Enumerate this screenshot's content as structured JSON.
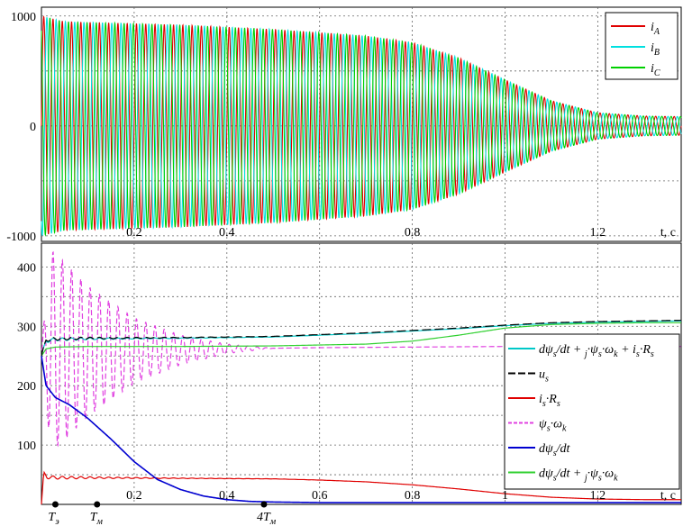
{
  "chart_data": [
    {
      "type": "line",
      "xlabel": "t, c",
      "xlim": [
        0,
        1.38
      ],
      "ylim": [
        -1050,
        1080
      ],
      "xticks": [
        0.2,
        0.4,
        0.8,
        1.2
      ],
      "xtick_labels": [
        "0.2",
        "0.4",
        "0.8",
        "1.2"
      ],
      "yticks": [
        1000,
        0,
        -1000
      ],
      "ytick_labels": [
        "1000",
        "0",
        "-1000"
      ],
      "grid": true,
      "legend_position": "top-right",
      "envelope": {
        "t": [
          0,
          0.05,
          0.3,
          0.5,
          0.7,
          0.8,
          0.9,
          1.0,
          1.1,
          1.2,
          1.3,
          1.38
        ],
        "amplitude": [
          1000,
          950,
          920,
          880,
          820,
          760,
          620,
          420,
          230,
          120,
          90,
          85
        ]
      },
      "series": [
        {
          "name": "A",
          "label": "i",
          "subscript": "A",
          "color": "#e00000",
          "phase_deg": 0
        },
        {
          "name": "B",
          "label": "i",
          "subscript": "B",
          "color": "#00e0e0",
          "phase_deg": 120
        },
        {
          "name": "C",
          "label": "i",
          "subscript": "C",
          "color": "#00d000",
          "phase_deg": 240
        }
      ]
    },
    {
      "type": "line",
      "xlabel": "t, c",
      "xlim": [
        0,
        1.38
      ],
      "ylim": [
        0,
        440
      ],
      "xticks": [
        0.2,
        0.4,
        0.6,
        0.8,
        1.0,
        1.2
      ],
      "xtick_labels": [
        "0.2",
        "0.4",
        "0.6",
        "0.8",
        "1",
        "1.2"
      ],
      "yticks": [
        100,
        200,
        300,
        400
      ],
      "ytick_labels": [
        "100",
        "200",
        "300",
        "400"
      ],
      "grid": true,
      "legend_position": "right",
      "markers": [
        {
          "t": 0.03,
          "label": "T",
          "subscript": "э"
        },
        {
          "t": 0.12,
          "label": "T",
          "subscript": "м"
        },
        {
          "t": 0.48,
          "label": "4T",
          "subscript": "м"
        }
      ],
      "series": [
        {
          "name": "dψs/dt + j·ψs·ωk + is·Rs",
          "color": "#00c8c8",
          "x": [
            0,
            0.01,
            0.03,
            0.1,
            0.3,
            0.5,
            0.7,
            0.9,
            1.0,
            1.1,
            1.2,
            1.38
          ],
          "y": [
            250,
            275,
            278,
            279,
            280,
            282,
            288,
            296,
            301,
            305,
            307,
            309
          ]
        },
        {
          "name": "us",
          "color": "#000000",
          "dash": "10,4",
          "x": [
            0,
            0.01,
            0.03,
            0.1,
            0.3,
            0.5,
            0.7,
            0.9,
            1.0,
            1.1,
            1.2,
            1.38
          ],
          "y": [
            250,
            277,
            279,
            280,
            281,
            283,
            289,
            297,
            302,
            306,
            308,
            310
          ]
        },
        {
          "name": "is·Rs",
          "color": "#e00000",
          "x": [
            0,
            0.005,
            0.012,
            0.03,
            0.1,
            0.3,
            0.5,
            0.6,
            0.7,
            0.8,
            0.9,
            1.0,
            1.1,
            1.2,
            1.3,
            1.38
          ],
          "y": [
            0,
            52,
            46,
            45,
            45,
            44,
            43,
            41,
            38,
            33,
            26,
            18,
            12,
            9,
            8,
            8
          ]
        },
        {
          "name": "ψs·ωk",
          "color": "#e040e0",
          "dash": "6,3",
          "x": [
            0,
            0.05,
            0.1,
            0.2,
            0.3,
            0.4,
            0.5,
            0.6,
            0.8,
            1.0,
            1.2,
            1.38
          ],
          "y": [
            260,
            258,
            258,
            259,
            260,
            262,
            263,
            264,
            265,
            266,
            266,
            266
          ],
          "osc_amp_t": [
            0,
            0.02,
            0.05,
            0.1,
            0.2,
            0.3,
            0.4,
            0.5
          ],
          "osc_amp_v": [
            0,
            170,
            150,
            110,
            55,
            25,
            8,
            0
          ]
        },
        {
          "name": "dψs/dt",
          "color": "#0000d0",
          "x": [
            0,
            0.01,
            0.03,
            0.06,
            0.1,
            0.15,
            0.2,
            0.25,
            0.3,
            0.35,
            0.4,
            0.45,
            0.5,
            0.6,
            0.8,
            1.0,
            1.38
          ],
          "y": [
            250,
            200,
            180,
            168,
            145,
            110,
            72,
            42,
            25,
            14,
            8,
            5,
            4,
            3,
            3,
            3,
            3
          ]
        },
        {
          "name": "dψs/dt + j·ψs·ωk",
          "color": "#30d030",
          "x": [
            0,
            0.01,
            0.03,
            0.1,
            0.3,
            0.5,
            0.7,
            0.8,
            0.9,
            1.0,
            1.1,
            1.2,
            1.3,
            1.38
          ],
          "y": [
            250,
            262,
            265,
            266,
            266,
            267,
            270,
            275,
            285,
            297,
            303,
            305,
            306,
            306
          ]
        }
      ],
      "legend": [
        {
          "parts": [
            "dψ",
            "s",
            "/dt + ",
            "j",
            "·ψ",
            "s",
            "·ω",
            "k",
            " + i",
            "s",
            "·R",
            "s"
          ]
        },
        {
          "parts": [
            "u",
            "s"
          ]
        },
        {
          "parts": [
            "i",
            "s",
            "·R",
            "s"
          ]
        },
        {
          "parts": [
            "ψ",
            "s",
            "·ω",
            "k"
          ]
        },
        {
          "parts": [
            "dψ",
            "s",
            "/dt"
          ]
        },
        {
          "parts": [
            "dψ",
            "s",
            "/dt + ",
            "j",
            "·ψ",
            "s",
            "·ω",
            "k"
          ]
        }
      ]
    }
  ]
}
